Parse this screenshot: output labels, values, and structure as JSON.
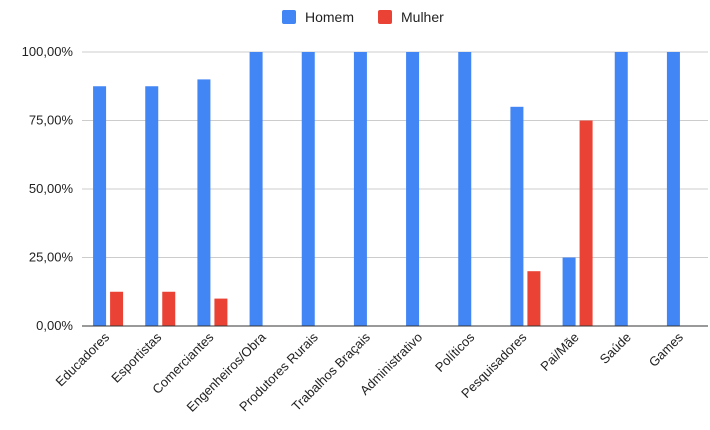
{
  "chart_data": {
    "type": "bar",
    "categories": [
      "Educadores",
      "Esportistas",
      "Comerciantes",
      "Engenheiros/Obra",
      "Produtores Rurais",
      "Trabalhos Braçais",
      "Administrativo",
      "Políticos",
      "Pesquisadores",
      "Pai/Mãe",
      "Saúde",
      "Games"
    ],
    "series": [
      {
        "name": "Homem",
        "color": "#4285f4",
        "values": [
          87.5,
          87.5,
          90,
          100,
          100,
          100,
          100,
          100,
          80,
          25,
          100,
          100
        ]
      },
      {
        "name": "Mulher",
        "color": "#ea4335",
        "values": [
          12.5,
          12.5,
          10,
          null,
          null,
          null,
          null,
          null,
          20,
          75,
          null,
          null
        ]
      }
    ],
    "ylim": [
      0,
      100
    ],
    "yticks": [
      "0,00%",
      "25,00%",
      "50,00%",
      "75,00%",
      "100,00%"
    ],
    "grid": true,
    "legend_position": "top-center",
    "title": "",
    "xlabel": "",
    "ylabel": ""
  }
}
